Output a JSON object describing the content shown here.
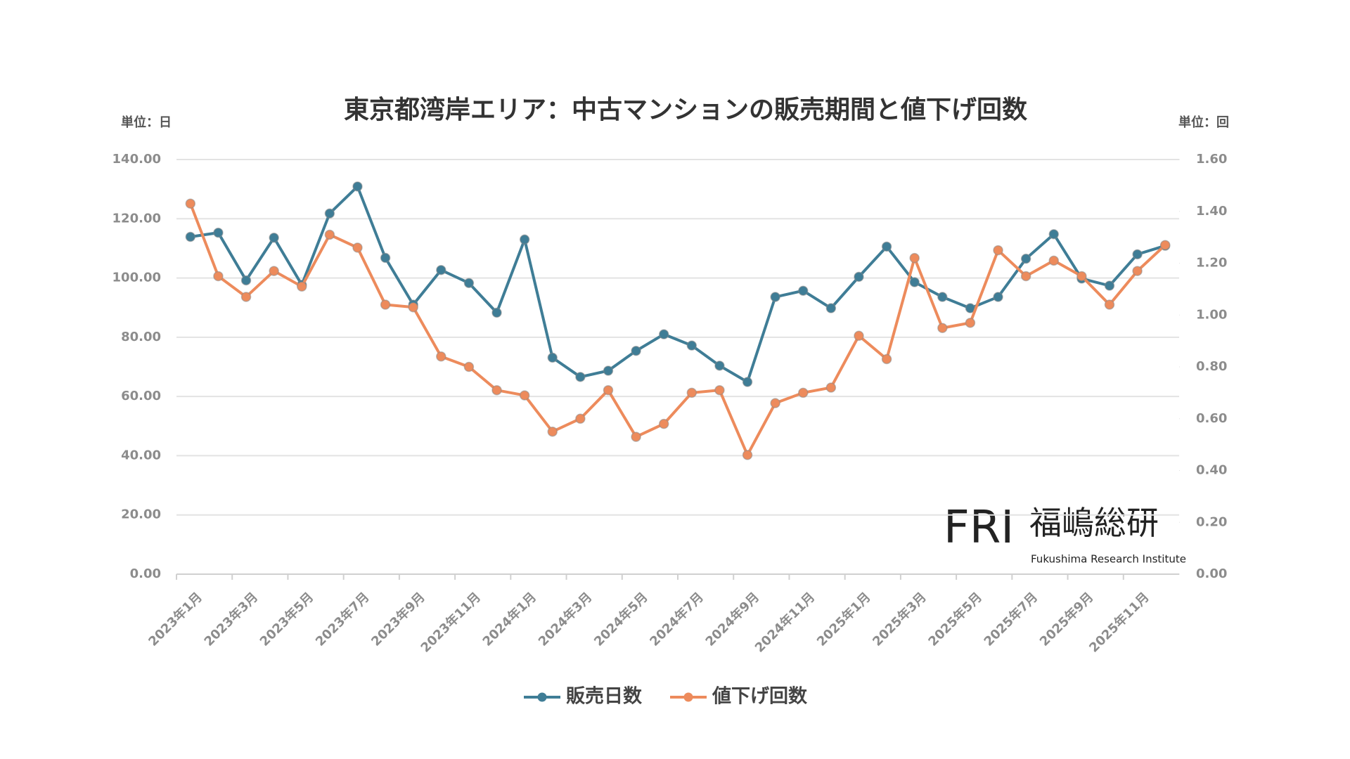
{
  "chart_data": {
    "type": "line",
    "title": "東京都湾岸エリア：中古マンションの販売期間と値下げ回数",
    "y_unit": "単位：日",
    "y2_unit": "単位：回",
    "logo": {
      "mark": "FRI",
      "name": "福嶋総研",
      "subtitle": "Fukushima Research Institute"
    },
    "categories": [
      "2023年1月",
      null,
      "2023年3月",
      null,
      "2023年5月",
      null,
      "2023年7月",
      null,
      "2023年9月",
      null,
      "2023年11月",
      null,
      "2024年1月",
      null,
      "2024年3月",
      null,
      "2024年5月",
      null,
      "2024年7月",
      null,
      "2024年9月",
      null,
      "2024年11月",
      null,
      "2025年1月",
      null,
      "2025年3月",
      null,
      "2025年5月",
      null,
      "2025年7月",
      null,
      "2025年9月",
      null,
      "2025年11月",
      null
    ],
    "series": [
      {
        "name": "販売日数",
        "color": "#3f7d96",
        "values": [
          113.9,
          115.3,
          99.2,
          113.6,
          97.7,
          121.8,
          130.9,
          106.8,
          91.0,
          102.7,
          98.3,
          88.3,
          113.0,
          73.1,
          66.6,
          68.7,
          75.4,
          81.0,
          77.2,
          70.4,
          64.9,
          93.6,
          95.7,
          89.8,
          100.4,
          110.6,
          98.6,
          93.6,
          89.8,
          93.6,
          106.5,
          114.8,
          99.8,
          97.4,
          108.0,
          110.9
        ]
      },
      {
        "name": "値下げ回数",
        "color": "#ed8b5c",
        "axis": "y2",
        "values": [
          1.43,
          1.15,
          1.07,
          1.17,
          1.11,
          1.31,
          1.26,
          1.04,
          1.03,
          0.84,
          0.8,
          0.71,
          0.69,
          0.55,
          0.6,
          0.71,
          0.53,
          0.58,
          0.7,
          0.71,
          0.46,
          0.66,
          0.7,
          0.72,
          0.92,
          0.83,
          1.22,
          0.95,
          0.97,
          1.25,
          1.15,
          1.21,
          1.15,
          1.04,
          1.17,
          1.27
        ]
      }
    ],
    "ylim": [
      0,
      140
    ],
    "yticks": [
      {
        "value": 0,
        "label": "0.00"
      },
      {
        "value": 20,
        "label": "20.00"
      },
      {
        "value": 40,
        "label": "40.00"
      },
      {
        "value": 60,
        "label": "60.00"
      },
      {
        "value": 80,
        "label": "80.00"
      },
      {
        "value": 100,
        "label": "100.00"
      },
      {
        "value": 120,
        "label": "120.00"
      },
      {
        "value": 140,
        "label": "140.00"
      }
    ],
    "y2lim": [
      0,
      1.6
    ],
    "y2ticks": [
      {
        "value": 0,
        "label": "0.00"
      },
      {
        "value": 0.2,
        "label": "0.20"
      },
      {
        "value": 0.4,
        "label": "0.40"
      },
      {
        "value": 0.6,
        "label": "0.60"
      },
      {
        "value": 0.8,
        "label": "0.80"
      },
      {
        "value": 1.0,
        "label": "1.00"
      },
      {
        "value": 1.2,
        "label": "1.20"
      },
      {
        "value": 1.4,
        "label": "1.40"
      },
      {
        "value": 1.6,
        "label": "1.60"
      }
    ],
    "grid": true,
    "legend": "bottom"
  }
}
